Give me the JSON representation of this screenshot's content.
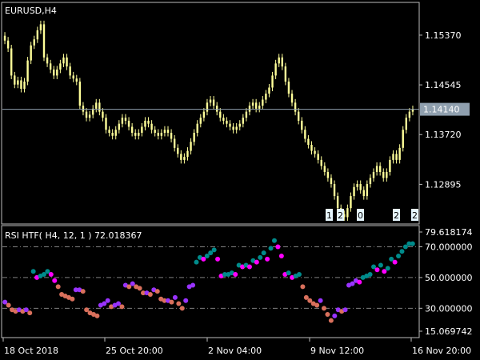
{
  "main_window": {
    "title": "EURUSD,H4",
    "current_price": "1.14140",
    "price_labels": [
      "1.15370",
      "1.14545",
      "1.13720",
      "1.12895"
    ],
    "markers": [
      "1",
      "2",
      "0",
      "2",
      "2"
    ]
  },
  "indicator_window": {
    "title": "RSI HTF( H4, 12, 1 ) 72.018367",
    "value_labels": [
      "79.618174",
      "70.000000",
      "50.000000",
      "30.000000",
      "15.069742"
    ]
  },
  "time_axis": [
    "18 Oct 2018",
    "25 Oct 20:00",
    "2 Nov 04:00",
    "9 Nov 12:00",
    "16 Nov 20:00"
  ],
  "colors": {
    "background": "#000000",
    "candles": "#ffff99",
    "grid": "#808080",
    "current_price_bg": "#8f9fae",
    "rsi_up": "#008b8b",
    "rsi_up_strong": "#9933ff",
    "rsi_down": "#ff00ff",
    "rsi_down_weak": "#d9705c"
  },
  "chart_data": [
    {
      "type": "line",
      "title": "EURUSD,H4",
      "ylim": [
        1.1225,
        1.159
      ],
      "y_ticks": [
        1.1537,
        1.14545,
        1.1372,
        1.12895
      ],
      "current": 1.1414,
      "series": [
        {
          "values": [
            1.1528,
            1.1515,
            1.147,
            1.1455,
            1.1462,
            1.1448,
            1.146,
            1.1495,
            1.152,
            1.153,
            1.1545,
            1.1555,
            1.15,
            1.149,
            1.148,
            1.147,
            1.148,
            1.149,
            1.15,
            1.1485,
            1.147,
            1.1465,
            1.146,
            1.142,
            1.141,
            1.14,
            1.1405,
            1.1415,
            1.1425,
            1.141,
            1.14,
            1.138,
            1.1375,
            1.137,
            1.138,
            1.139,
            1.14,
            1.1395,
            1.1385,
            1.1375,
            1.137,
            1.1375,
            1.1385,
            1.1395,
            1.139,
            1.138,
            1.1375,
            1.137,
            1.1375,
            1.138,
            1.1375,
            1.1365,
            1.135,
            1.134,
            1.133,
            1.1335,
            1.1345,
            1.136,
            1.1375,
            1.139,
            1.14,
            1.141,
            1.1425,
            1.143,
            1.142,
            1.141,
            1.14,
            1.1395,
            1.139,
            1.1385,
            1.138,
            1.1385,
            1.139,
            1.14,
            1.141,
            1.142,
            1.1425,
            1.1415,
            1.142,
            1.143,
            1.144,
            1.145,
            1.147,
            1.149,
            1.15,
            1.1485,
            1.146,
            1.144,
            1.1425,
            1.141,
            1.1395,
            1.138,
            1.1365,
            1.1355,
            1.1345,
            1.134,
            1.133,
            1.132,
            1.131,
            1.13,
            1.129,
            1.127,
            1.125,
            1.124,
            1.1235,
            1.125,
            1.127,
            1.1285,
            1.129,
            1.128,
            1.127,
            1.129,
            1.13,
            1.131,
            1.132,
            1.131,
            1.13,
            1.131,
            1.133,
            1.134,
            1.133,
            1.135,
            1.138,
            1.14,
            1.141,
            1.1414
          ]
        }
      ]
    },
    {
      "type": "scatter",
      "title": "RSI HTF( H4, 12, 1 ) 72.018367",
      "ylim": [
        15.069742,
        79.618174
      ],
      "levels": [
        70,
        50,
        30
      ],
      "series": [
        {
          "name": "",
          "values": [
            34,
            32,
            29,
            28,
            29,
            28,
            29,
            27,
            54,
            50,
            51,
            52,
            54,
            52,
            48,
            44,
            39,
            38,
            37,
            36,
            42,
            42,
            41,
            29,
            27,
            26,
            25,
            32,
            33,
            35,
            31,
            32,
            33,
            31,
            45,
            44,
            46,
            44,
            43,
            40,
            40,
            39,
            42,
            41,
            36,
            35,
            35,
            34,
            37,
            33,
            30,
            35,
            44,
            45,
            60,
            63,
            62,
            64,
            66,
            68,
            62,
            51,
            52,
            52,
            53,
            52,
            58,
            57,
            58,
            57,
            61,
            60,
            63,
            66,
            62,
            69,
            74,
            70,
            64,
            52,
            53,
            50,
            51,
            52,
            44,
            37,
            35,
            33,
            32,
            35,
            30,
            26,
            22,
            25,
            29,
            28,
            29,
            45,
            46,
            48,
            47,
            50,
            51,
            52,
            57,
            55,
            58,
            54,
            56,
            62,
            60,
            64,
            67,
            70,
            72,
            72
          ]
        }
      ]
    }
  ]
}
